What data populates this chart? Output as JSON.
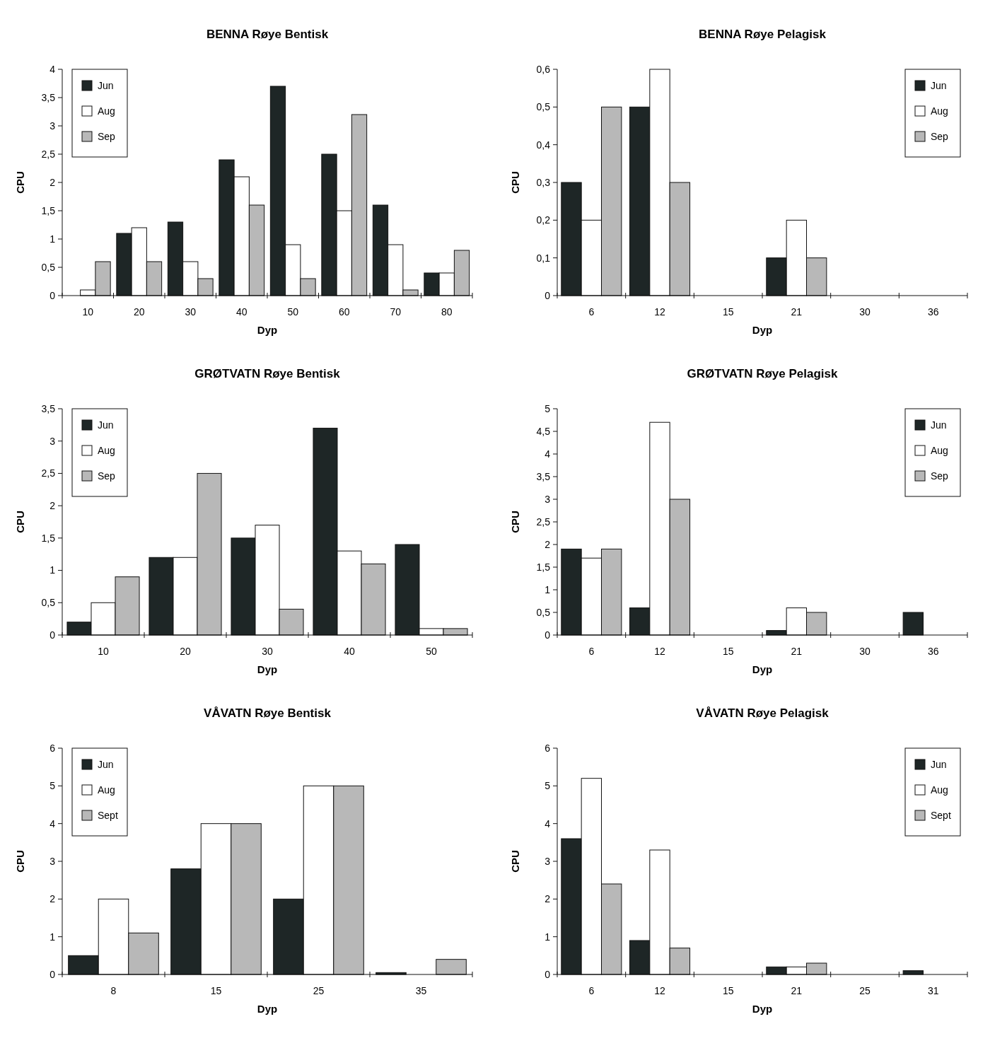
{
  "chart_data": [
    {
      "type": "bar",
      "title": "BENNA Røye Bentisk",
      "xlabel": "Dyp",
      "ylabel": "CPU",
      "categories": [
        "10",
        "20",
        "30",
        "40",
        "50",
        "60",
        "70",
        "80"
      ],
      "series": [
        {
          "name": "Jun",
          "color": "#1e2626",
          "values": [
            null,
            1.1,
            1.3,
            2.4,
            3.7,
            2.5,
            1.6,
            0.4
          ]
        },
        {
          "name": "Aug",
          "color": "#ffffff",
          "values": [
            0.1,
            1.2,
            0.6,
            2.1,
            0.9,
            1.5,
            0.9,
            0.4
          ]
        },
        {
          "name": "Sep",
          "color": "#b8b8b8",
          "values": [
            0.6,
            0.6,
            0.3,
            1.6,
            0.3,
            3.2,
            0.1,
            0.8
          ]
        }
      ],
      "ylim": [
        0,
        4
      ],
      "yticks": [
        0,
        {
          "value": 0.5,
          "label": "0,5"
        },
        1,
        {
          "value": 1.5,
          "label": "1,5"
        },
        2,
        {
          "value": 2.5,
          "label": "2,5"
        },
        3,
        {
          "value": 3.5,
          "label": "3,5"
        },
        4
      ],
      "legend": "top left",
      "grid": false
    },
    {
      "type": "bar",
      "title": "BENNA Røye Pelagisk",
      "xlabel": "Dyp",
      "ylabel": "CPU",
      "categories": [
        "6",
        "12",
        "15",
        "21",
        "30",
        "36"
      ],
      "series": [
        {
          "name": "Jun",
          "color": "#1e2626",
          "values": [
            0.3,
            0.5,
            null,
            0.1,
            null,
            null
          ]
        },
        {
          "name": "Aug",
          "color": "#ffffff",
          "values": [
            0.2,
            0.6,
            null,
            0.2,
            null,
            null
          ]
        },
        {
          "name": "Sep",
          "color": "#b8b8b8",
          "values": [
            0.5,
            0.3,
            null,
            0.1,
            null,
            null
          ]
        }
      ],
      "ylim": [
        0,
        0.6
      ],
      "yticks": [
        0,
        {
          "value": 0.1,
          "label": "0,1"
        },
        {
          "value": 0.2,
          "label": "0,2"
        },
        {
          "value": 0.3,
          "label": "0,3"
        },
        {
          "value": 0.4,
          "label": "0,4"
        },
        {
          "value": 0.5,
          "label": "0,5"
        },
        {
          "value": 0.6,
          "label": "0,6"
        }
      ],
      "legend": "top right",
      "grid": false
    },
    {
      "type": "bar",
      "title": "GRØTVATN Røye Bentisk",
      "xlabel": "Dyp",
      "ylabel": "CPU",
      "categories": [
        "10",
        "20",
        "30",
        "40",
        "50"
      ],
      "series": [
        {
          "name": "Jun",
          "color": "#1e2626",
          "values": [
            0.2,
            1.2,
            1.5,
            3.2,
            1.4
          ]
        },
        {
          "name": "Aug",
          "color": "#ffffff",
          "values": [
            0.5,
            1.2,
            1.7,
            1.3,
            0.1
          ]
        },
        {
          "name": "Sep",
          "color": "#b8b8b8",
          "values": [
            0.9,
            2.5,
            0.4,
            1.1,
            0.1
          ]
        }
      ],
      "ylim": [
        0,
        3.5
      ],
      "yticks": [
        0,
        {
          "value": 0.5,
          "label": "0,5"
        },
        1,
        {
          "value": 1.5,
          "label": "1,5"
        },
        2,
        {
          "value": 2.5,
          "label": "2,5"
        },
        3,
        {
          "value": 3.5,
          "label": "3,5"
        }
      ],
      "legend": "top left",
      "grid": false
    },
    {
      "type": "bar",
      "title": "GRØTVATN Røye Pelagisk",
      "xlabel": "Dyp",
      "ylabel": "CPU",
      "categories": [
        "6",
        "12",
        "15",
        "21",
        "30",
        "36"
      ],
      "series": [
        {
          "name": "Jun",
          "color": "#1e2626",
          "values": [
            1.9,
            0.6,
            null,
            0.1,
            null,
            0.5
          ]
        },
        {
          "name": "Aug",
          "color": "#ffffff",
          "values": [
            1.7,
            4.7,
            null,
            0.6,
            null,
            null
          ]
        },
        {
          "name": "Sep",
          "color": "#b8b8b8",
          "values": [
            1.9,
            3.0,
            null,
            0.5,
            null,
            null
          ]
        }
      ],
      "ylim": [
        0,
        5
      ],
      "yticks": [
        0,
        {
          "value": 0.5,
          "label": "0,5"
        },
        1,
        {
          "value": 1.5,
          "label": "1,5"
        },
        2,
        {
          "value": 2.5,
          "label": "2,5"
        },
        3,
        {
          "value": 3.5,
          "label": "3,5"
        },
        4,
        {
          "value": 4.5,
          "label": "4,5"
        },
        5
      ],
      "legend": "top right",
      "grid": false
    },
    {
      "type": "bar",
      "title": "VÅVATN Røye Bentisk",
      "xlabel": "Dyp",
      "ylabel": "CPU",
      "categories": [
        "8",
        "15",
        "25",
        "35"
      ],
      "series": [
        {
          "name": "Jun",
          "color": "#1e2626",
          "values": [
            0.5,
            2.8,
            2.0,
            0.05
          ]
        },
        {
          "name": "Aug",
          "color": "#ffffff",
          "values": [
            2.0,
            4.0,
            5.0,
            null
          ]
        },
        {
          "name": "Sept",
          "color": "#b8b8b8",
          "values": [
            1.1,
            4.0,
            5.0,
            0.4
          ]
        }
      ],
      "ylim": [
        0,
        6
      ],
      "yticks": [
        0,
        1,
        2,
        3,
        4,
        5,
        6
      ],
      "legend": "top left",
      "grid": false
    },
    {
      "type": "bar",
      "title": "VÅVATN Røye Pelagisk",
      "xlabel": "Dyp",
      "ylabel": "CPU",
      "categories": [
        "6",
        "12",
        "15",
        "21",
        "25",
        "31"
      ],
      "series": [
        {
          "name": "Jun",
          "color": "#1e2626",
          "values": [
            3.6,
            0.9,
            null,
            0.2,
            null,
            0.1
          ]
        },
        {
          "name": "Aug",
          "color": "#ffffff",
          "values": [
            5.2,
            3.3,
            null,
            0.2,
            null,
            null
          ]
        },
        {
          "name": "Sept",
          "color": "#b8b8b8",
          "values": [
            2.4,
            0.7,
            null,
            0.3,
            null,
            null
          ]
        }
      ],
      "ylim": [
        0,
        6
      ],
      "yticks": [
        0,
        1,
        2,
        3,
        4,
        5,
        6
      ],
      "legend": "top right",
      "grid": false
    }
  ]
}
